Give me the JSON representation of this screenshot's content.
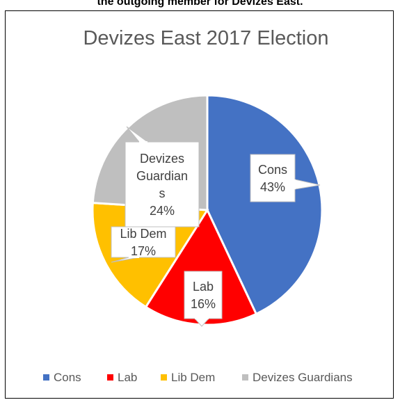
{
  "page": {
    "top_caption": "the outgoing member for Devizes East."
  },
  "chart_data": {
    "type": "pie",
    "title": "Devizes East 2017 Election",
    "categories": [
      "Cons",
      "Lab",
      "Lib Dem",
      "Devizes Guardians"
    ],
    "values": [
      43,
      16,
      17,
      24
    ],
    "labels": [
      [
        "Cons",
        "43%"
      ],
      [
        "Lab",
        "16%"
      ],
      [
        "Lib Dem",
        "17%"
      ],
      [
        "Devizes",
        "Guardian",
        "s",
        "24%"
      ]
    ],
    "colors": [
      "#4472C4",
      "#FF0000",
      "#FFC000",
      "#BFBFBF"
    ],
    "legend_position": "bottom"
  }
}
